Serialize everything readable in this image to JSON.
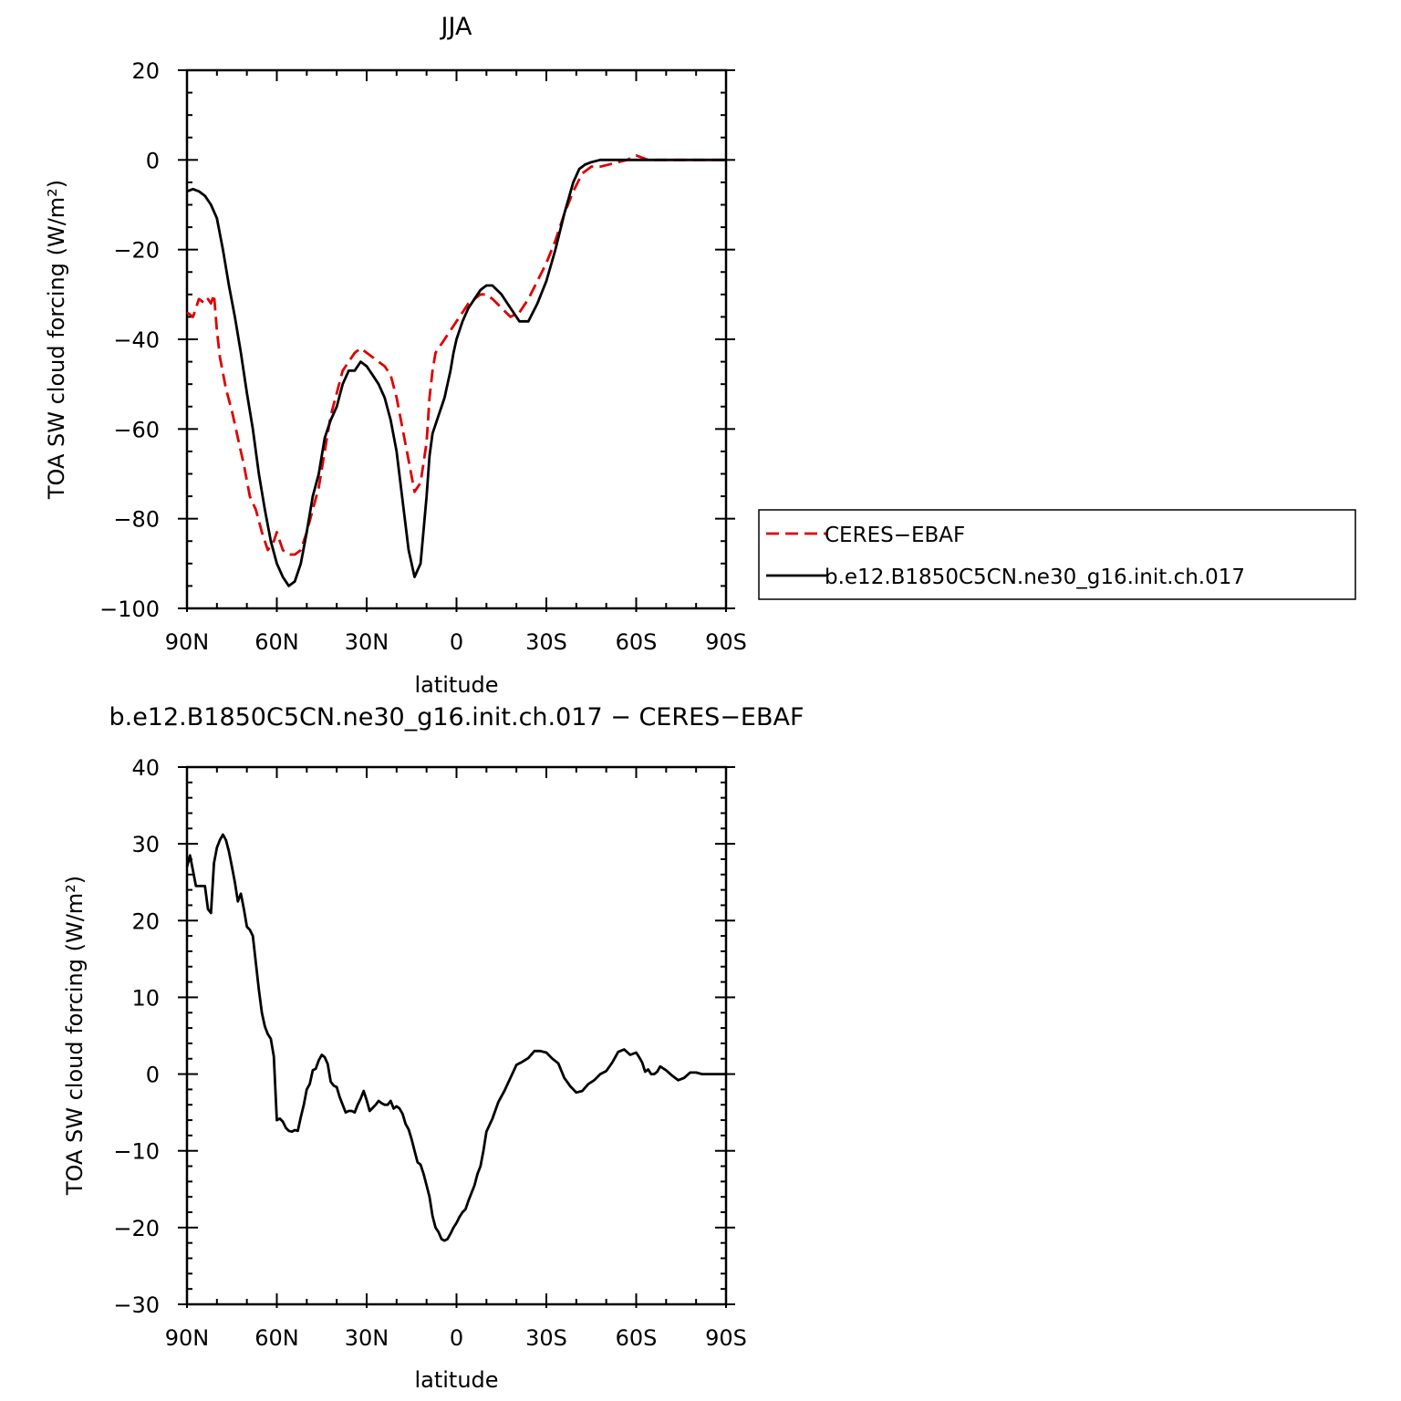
{
  "chart_data": [
    {
      "type": "line",
      "title": "JJA",
      "xlabel": "latitude",
      "ylabel": "TOA SW cloud forcing (W/m²)",
      "xlim": [
        90,
        -90
      ],
      "ylim": [
        -100,
        20
      ],
      "x_ticks": [
        90,
        60,
        30,
        0,
        -30,
        -60,
        -90
      ],
      "x_tick_labels": [
        "90N",
        "60N",
        "30N",
        "0",
        "30S",
        "60S",
        "90S"
      ],
      "y_ticks": [
        20,
        0,
        -20,
        -40,
        -60,
        -80,
        -100
      ],
      "y_tick_labels": [
        "20",
        "0",
        "−20",
        "−40",
        "−60",
        "−80",
        "−100"
      ],
      "legend": {
        "placement": "right",
        "entries": [
          "CERES−EBAF",
          "b.e12.B1850C5CN.ne30_g16.init.ch.017"
        ]
      },
      "series": [
        {
          "name": "CERES−EBAF",
          "color": "#e00000",
          "dash": "dashed",
          "x": [
            90,
            88,
            86,
            84,
            83,
            82,
            81,
            80,
            79,
            77,
            75,
            73,
            71,
            69,
            67,
            65,
            63,
            61,
            60,
            59,
            58,
            56,
            54,
            52,
            50,
            48,
            46,
            44,
            42,
            40,
            38,
            36,
            34,
            32,
            30,
            28,
            26,
            24,
            22,
            20,
            18,
            16,
            14,
            12,
            10,
            9,
            8,
            7,
            6,
            5,
            4,
            3,
            2,
            1,
            0,
            -2,
            -4,
            -6,
            -8,
            -10,
            -12,
            -15,
            -18,
            -21,
            -24,
            -27,
            -30,
            -33,
            -36,
            -39,
            -42,
            -45,
            -48,
            -51,
            -54,
            -57,
            -60,
            -62,
            -64,
            -66,
            -68,
            -70,
            -72,
            -74,
            -76,
            -78,
            -80,
            -85,
            -90
          ],
          "y": [
            -34,
            -35,
            -31,
            -32,
            -31,
            -32,
            -30,
            -38,
            -44,
            -51,
            -56,
            -62,
            -68,
            -75,
            -78,
            -83,
            -87,
            -85,
            -83,
            -85,
            -87,
            -88,
            -88,
            -87,
            -83,
            -78,
            -73,
            -65,
            -57,
            -52,
            -47,
            -45,
            -43,
            -42,
            -43,
            -44,
            -45,
            -46,
            -48,
            -53,
            -60,
            -67,
            -74,
            -72,
            -63,
            -53,
            -47,
            -43,
            -42,
            -41,
            -40,
            -39,
            -38,
            -37,
            -36,
            -34,
            -32,
            -31,
            -30,
            -30,
            -31,
            -33,
            -35,
            -34,
            -31,
            -27,
            -23,
            -18,
            -12,
            -7,
            -3,
            -1.5,
            -1.5,
            -1,
            -0.5,
            0,
            1,
            0.5,
            0,
            0,
            0,
            0,
            0,
            0,
            0,
            0,
            0,
            0,
            0
          ]
        },
        {
          "name": "b.e12.B1850C5CN.ne30_g16.init.ch.017",
          "color": "#000000",
          "dash": "solid",
          "x": [
            90,
            88,
            86,
            84,
            82,
            80,
            78,
            76,
            74,
            72,
            70,
            68,
            66,
            64,
            62,
            60,
            58,
            56,
            54,
            52,
            50,
            48,
            46,
            44,
            42,
            40,
            38,
            36,
            34,
            32,
            30,
            28,
            26,
            24,
            22,
            20,
            18,
            16,
            14,
            12,
            10,
            9,
            8,
            7,
            6,
            5,
            4,
            3,
            2,
            1,
            0,
            -2,
            -4,
            -6,
            -8,
            -10,
            -12,
            -15,
            -18,
            -21,
            -24,
            -27,
            -30,
            -33,
            -36,
            -39,
            -41,
            -43,
            -45,
            -48,
            -51,
            -54,
            -57,
            -60,
            -62,
            -64,
            -66,
            -68,
            -70,
            -72,
            -74,
            -76,
            -78,
            -80,
            -85,
            -90
          ],
          "y": [
            -7,
            -6.5,
            -7,
            -8,
            -10,
            -13,
            -20,
            -28,
            -35,
            -43,
            -52,
            -60,
            -70,
            -78,
            -85,
            -90,
            -93,
            -95,
            -94,
            -90,
            -83,
            -75,
            -70,
            -62,
            -58,
            -55,
            -50,
            -47,
            -47,
            -45,
            -46,
            -48,
            -50,
            -53,
            -58,
            -65,
            -76,
            -87,
            -93,
            -90,
            -75,
            -66,
            -61,
            -59,
            -57,
            -55,
            -53,
            -50,
            -47,
            -43,
            -40,
            -36,
            -33,
            -31,
            -29,
            -28,
            -28,
            -30,
            -33,
            -36,
            -36,
            -32,
            -27,
            -20,
            -12,
            -5,
            -2,
            -1,
            -0.5,
            0,
            0,
            0,
            0,
            0,
            0,
            0,
            0,
            0,
            0,
            0,
            0,
            0,
            0,
            0,
            0,
            0
          ]
        }
      ]
    },
    {
      "type": "line",
      "title": "b.e12.B1850C5CN.ne30_g16.init.ch.017 − CERES−EBAF",
      "xlabel": "latitude",
      "ylabel": "TOA SW cloud forcing (W/m²)",
      "xlim": [
        90,
        -90
      ],
      "ylim": [
        -30,
        40
      ],
      "x_ticks": [
        90,
        60,
        30,
        0,
        -30,
        -60,
        -90
      ],
      "x_tick_labels": [
        "90N",
        "60N",
        "30N",
        "0",
        "30S",
        "60S",
        "90S"
      ],
      "y_ticks": [
        40,
        30,
        20,
        10,
        0,
        -10,
        -20,
        -30
      ],
      "y_tick_labels": [
        "40",
        "30",
        "20",
        "10",
        "0",
        "−10",
        "−20",
        "−30"
      ],
      "series": [
        {
          "color": "#000000",
          "dash": "solid",
          "x": [
            90,
            89,
            88,
            87,
            86,
            85,
            84,
            83,
            82,
            81,
            80,
            79,
            78,
            77,
            76,
            75,
            74,
            73,
            72,
            71,
            70,
            69,
            68,
            67,
            66,
            65,
            64,
            63,
            62,
            61,
            60,
            59,
            58,
            57,
            56,
            55,
            54,
            53,
            52,
            51,
            50,
            49,
            48,
            47,
            46,
            45,
            44,
            43,
            42,
            41,
            40,
            39,
            38,
            37,
            36,
            35,
            34,
            33,
            32,
            31,
            30,
            29,
            28,
            27,
            26,
            25,
            24,
            23,
            22,
            21,
            20,
            19,
            18,
            17,
            16,
            15,
            14,
            13,
            12,
            11,
            10,
            9,
            8,
            7,
            6,
            5,
            4,
            3,
            2,
            1,
            0,
            -1,
            -2,
            -3,
            -4,
            -5,
            -6,
            -7,
            -8,
            -9,
            -10,
            -12,
            -14,
            -16,
            -18,
            -20,
            -22,
            -24,
            -26,
            -28,
            -30,
            -32,
            -34,
            -36,
            -38,
            -40,
            -42,
            -44,
            -46,
            -48,
            -50,
            -52,
            -54,
            -56,
            -58,
            -60,
            -61,
            -62,
            -63,
            -64,
            -65,
            -66,
            -67,
            -68,
            -70,
            -72,
            -74,
            -76,
            -78,
            -80,
            -82,
            -85,
            -88,
            -90
          ],
          "y": [
            27,
            28.5,
            26.5,
            24.5,
            24.5,
            24.5,
            24.5,
            21.5,
            21,
            27.5,
            29.5,
            30.5,
            31.2,
            30.5,
            29,
            27,
            25,
            22.5,
            23.5,
            21.5,
            19.2,
            18.8,
            18,
            14.5,
            11,
            8,
            6.2,
            5.2,
            4.6,
            2.3,
            -6,
            -5.8,
            -6.2,
            -7,
            -7.4,
            -7.5,
            -7.3,
            -7.4,
            -5.6,
            -4,
            -2,
            -1.3,
            0.5,
            0.7,
            1.8,
            2.5,
            2.2,
            1.3,
            -1,
            -1.5,
            -1.7,
            -3,
            -4,
            -5,
            -4.8,
            -4.8,
            -5,
            -4,
            -3.2,
            -2.2,
            -3.4,
            -4.8,
            -4.4,
            -4,
            -3.5,
            -3.8,
            -4,
            -4,
            -3.5,
            -4.5,
            -4.2,
            -4.5,
            -5.2,
            -6.5,
            -7.2,
            -8.5,
            -10,
            -11.5,
            -11.8,
            -13,
            -14.5,
            -16,
            -18.5,
            -20,
            -20.6,
            -21.5,
            -21.7,
            -21.5,
            -20.8,
            -20,
            -19.4,
            -18.6,
            -18,
            -17.6,
            -16.5,
            -15.5,
            -14.5,
            -13,
            -12,
            -10,
            -7.5,
            -5.8,
            -3.6,
            -2.2,
            -0.5,
            1.2,
            1.6,
            2.1,
            3,
            3,
            2.8,
            2,
            1.4,
            -0.5,
            -1.6,
            -2.4,
            -2.2,
            -1.3,
            -0.8,
            0,
            0.4,
            1.5,
            2.9,
            3.2,
            2.5,
            2.8,
            2.2,
            1.5,
            0.3,
            0.6,
            0,
            0,
            0.3,
            1,
            0.5,
            -0.2,
            -0.8,
            -0.5,
            0.2,
            0.2,
            0,
            0,
            0,
            0
          ]
        }
      ]
    }
  ]
}
